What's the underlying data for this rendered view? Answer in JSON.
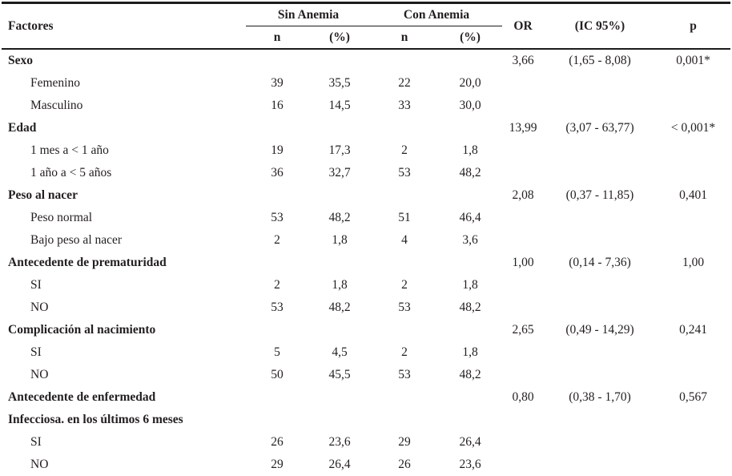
{
  "table": {
    "header": {
      "factores": "Factores",
      "group_sin": "Sin Anemia",
      "group_con": "Con Anemia",
      "sub_n": "n",
      "sub_pct": "(%)",
      "or": "OR",
      "ic": "(IC 95%)",
      "p": "p"
    },
    "rows": [
      {
        "type": "group",
        "label": "Sexo",
        "or": "3,66",
        "ic": "(1,65 - 8,08)",
        "p": "0,001*"
      },
      {
        "type": "item",
        "label": "Femenino",
        "n1": "39",
        "p1": "35,5",
        "n2": "22",
        "p2": "20,0"
      },
      {
        "type": "item",
        "label": "Masculino",
        "n1": "16",
        "p1": "14,5",
        "n2": "33",
        "p2": "30,0"
      },
      {
        "type": "group",
        "label": "Edad",
        "or": "13,99",
        "ic": "(3,07 - 63,77)",
        "p": "< 0,001*"
      },
      {
        "type": "item",
        "label": "1 mes a < 1 año",
        "n1": "19",
        "p1": "17,3",
        "n2": "2",
        "p2": "1,8"
      },
      {
        "type": "item",
        "label": "1 año a < 5 años",
        "n1": "36",
        "p1": "32,7",
        "n2": "53",
        "p2": "48,2"
      },
      {
        "type": "group",
        "label": "Peso al nacer",
        "or": "2,08",
        "ic": "(0,37 - 11,85)",
        "p": "0,401"
      },
      {
        "type": "item",
        "label": "Peso normal",
        "n1": "53",
        "p1": "48,2",
        "n2": "51",
        "p2": "46,4"
      },
      {
        "type": "item",
        "label": "Bajo peso al nacer",
        "n1": "2",
        "p1": "1,8",
        "n2": "4",
        "p2": "3,6"
      },
      {
        "type": "group",
        "label": "Antecedente de prematuridad",
        "or": "1,00",
        "ic": "(0,14 - 7,36)",
        "p": "1,00"
      },
      {
        "type": "item",
        "label": "SI",
        "n1": "2",
        "p1": "1,8",
        "n2": "2",
        "p2": "1,8"
      },
      {
        "type": "item",
        "label": "NO",
        "n1": "53",
        "p1": "48,2",
        "n2": "53",
        "p2": "48,2"
      },
      {
        "type": "group",
        "label": "Complicación al nacimiento",
        "or": "2,65",
        "ic": "(0,49 - 14,29)",
        "p": "0,241"
      },
      {
        "type": "item",
        "label": "SI",
        "n1": "5",
        "p1": "4,5",
        "n2": "2",
        "p2": "1,8"
      },
      {
        "type": "item",
        "label": "NO",
        "n1": "50",
        "p1": "45,5",
        "n2": "53",
        "p2": "48,2"
      },
      {
        "type": "group",
        "label": "Antecedente de enfermedad",
        "label2": "Infecciosa. en los últimos 6 meses",
        "or": "0,80",
        "ic": "(0,38 - 1,70)",
        "p": "0,567"
      },
      {
        "type": "item",
        "label": "SI",
        "n1": "26",
        "p1": "23,6",
        "n2": "29",
        "p2": "26,4"
      },
      {
        "type": "item",
        "label": "NO",
        "n1": "29",
        "p1": "26,4",
        "n2": "26",
        "p2": "23,6"
      }
    ]
  }
}
